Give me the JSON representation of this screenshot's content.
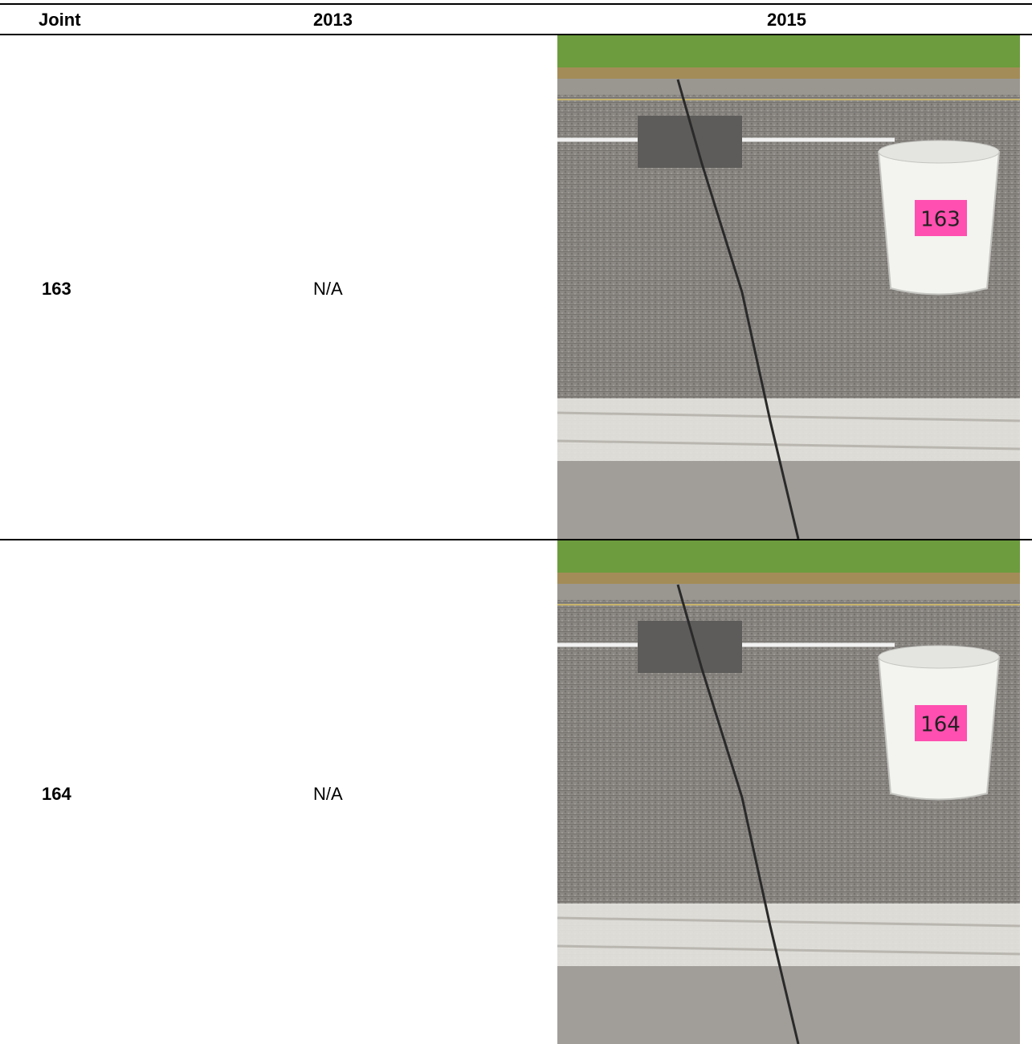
{
  "table": {
    "header": [
      "Joint",
      "2013",
      "2015"
    ],
    "rows": [
      {
        "joint": "163",
        "year_2013": "N/A",
        "photo_label": "163"
      },
      {
        "joint": "164",
        "year_2013": "N/A",
        "photo_label": "164"
      }
    ]
  }
}
